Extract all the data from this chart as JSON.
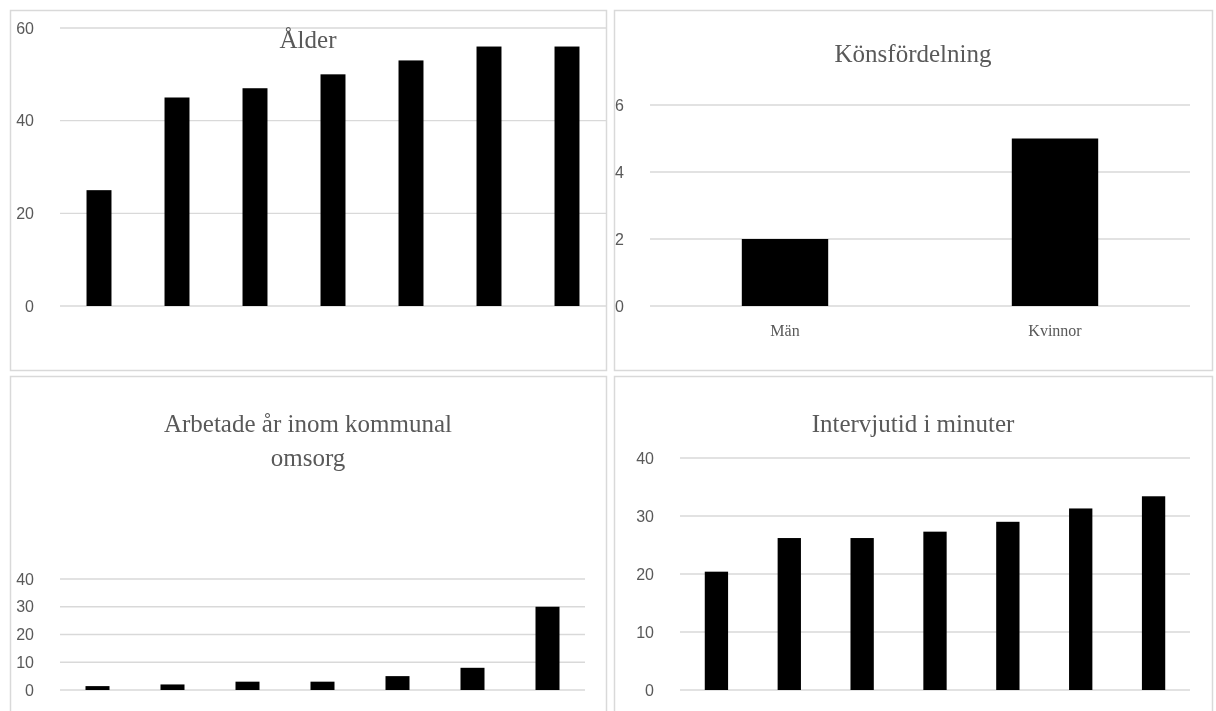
{
  "chart_data": [
    {
      "type": "bar",
      "title": "Ålder",
      "categories": [
        null,
        null,
        null,
        null,
        null,
        null,
        null
      ],
      "values": [
        25,
        45,
        47,
        50,
        53,
        56,
        56
      ],
      "color": "#000000",
      "ylim": [
        0,
        60
      ],
      "yticks": [
        0,
        20,
        40,
        60
      ],
      "grid": "y"
    },
    {
      "type": "bar",
      "title": "Könsfördelning",
      "categories": [
        "Män",
        "Kvinnor"
      ],
      "values": [
        2,
        5
      ],
      "color": "#000000",
      "ylim": [
        0,
        6
      ],
      "yticks": [
        0,
        2,
        4,
        6
      ],
      "grid": "y"
    },
    {
      "type": "bar",
      "title": "Arbetade år inom kommunal omsorg",
      "categories": [
        null,
        null,
        null,
        null,
        null,
        null,
        null
      ],
      "values": [
        1.4,
        2,
        3,
        3,
        5,
        8,
        30
      ],
      "color": "#000000",
      "ylim": [
        0,
        40
      ],
      "yticks": [
        0,
        10,
        20,
        30,
        40
      ],
      "grid": "y"
    },
    {
      "type": "bar",
      "title": "Intervjutid i minuter",
      "categories": [
        null,
        null,
        null,
        null,
        null,
        null,
        null
      ],
      "values": [
        20.4,
        26.2,
        26.2,
        27.3,
        29,
        31.3,
        33.4
      ],
      "color": "#000000",
      "ylim": [
        0,
        40
      ],
      "yticks": [
        0,
        10,
        20,
        30,
        40
      ],
      "grid": "y"
    }
  ]
}
